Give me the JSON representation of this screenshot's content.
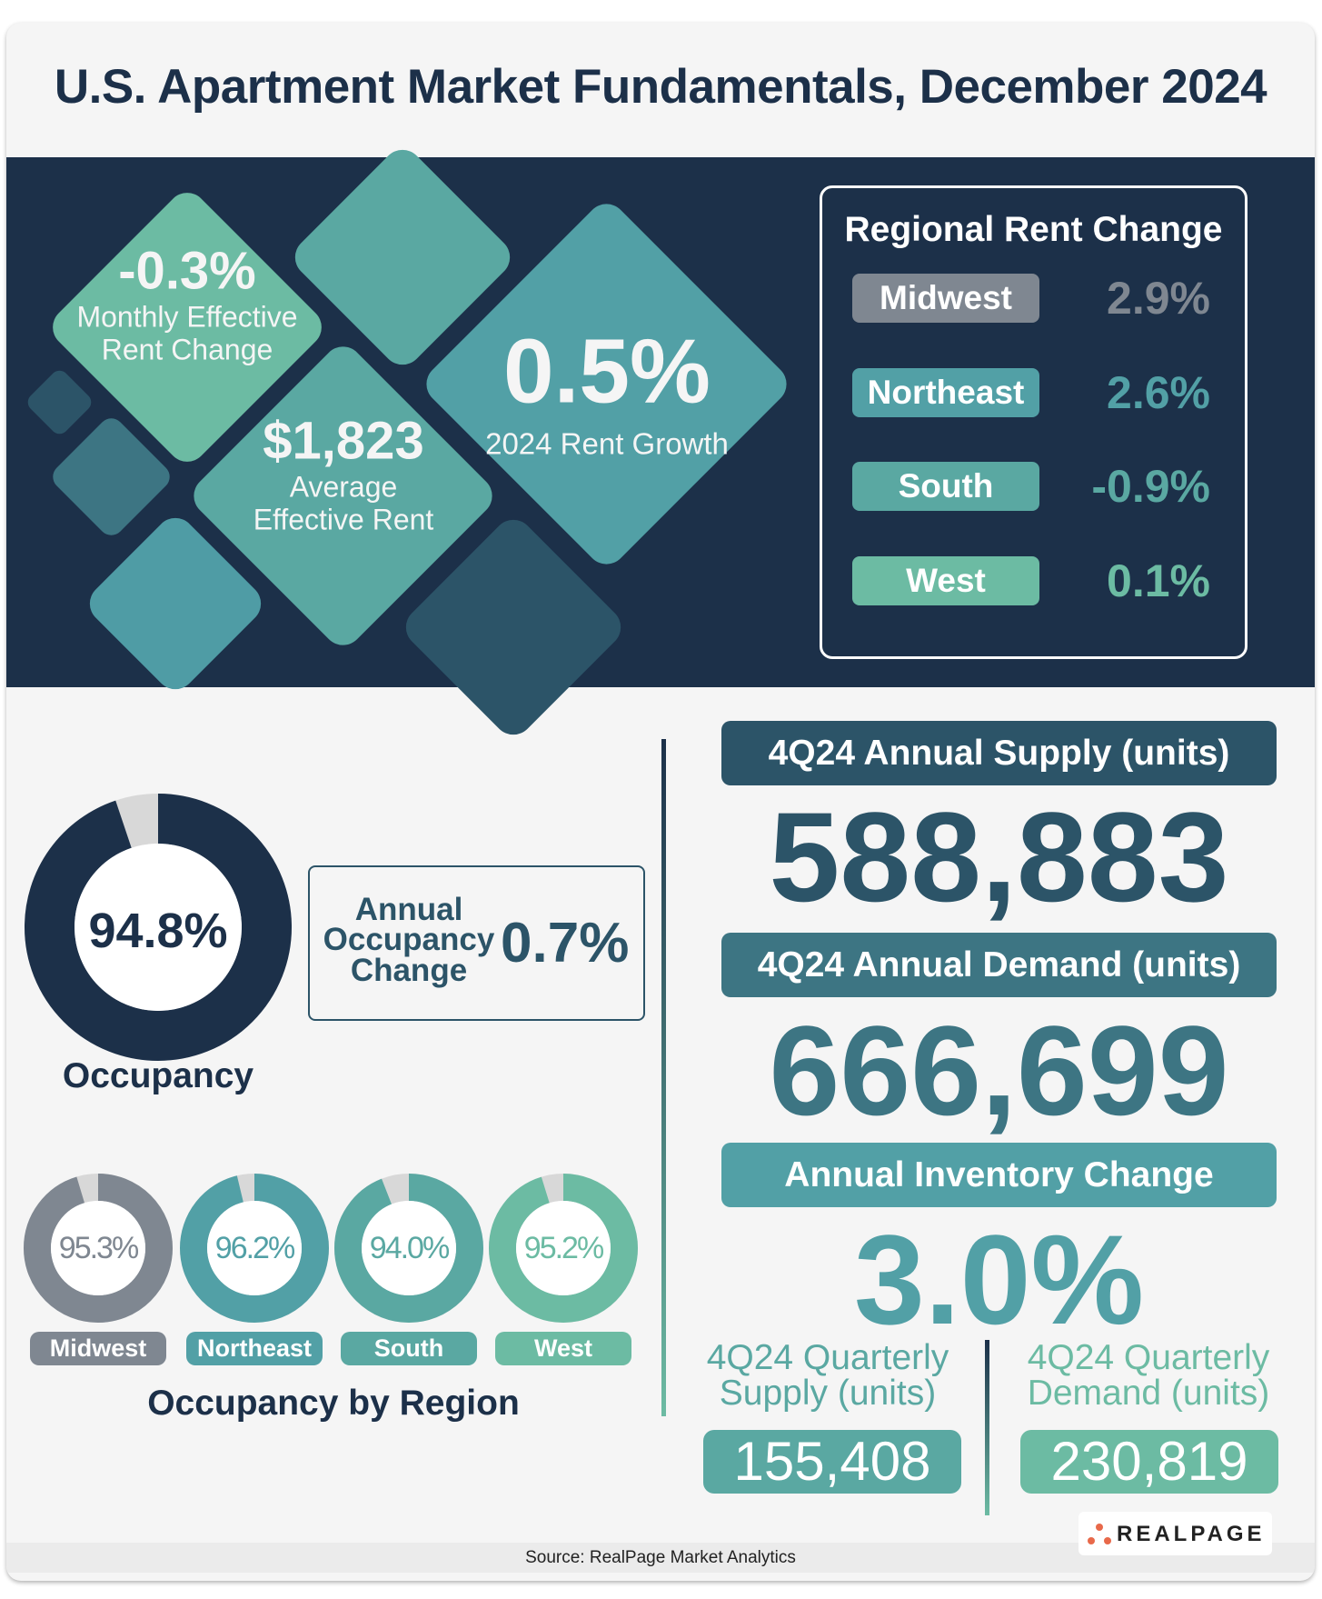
{
  "title": "U.S. Apartment Market Fundamentals, December 2024",
  "colors": {
    "navy": "#1c3049",
    "gray": "#7f8791",
    "teal": "#52a0a6",
    "south": "#5aa8a2",
    "green": "#6cbba3",
    "darkteal": "#2c5468",
    "empty": "#d8d8d8"
  },
  "hero": {
    "monthly": {
      "value": "-0.3%",
      "label1": "Monthly Effective",
      "label2": "Rent Change"
    },
    "average": {
      "value": "$1,823",
      "label1": "Average",
      "label2": "Effective Rent"
    },
    "growth": {
      "value": "0.5%",
      "label": "2024 Rent Growth"
    }
  },
  "regional_rent": {
    "title": "Regional Rent Change",
    "rows": [
      {
        "region": "Midwest",
        "value": "2.9%"
      },
      {
        "region": "Northeast",
        "value": "2.6%"
      },
      {
        "region": "South",
        "value": "-0.9%"
      },
      {
        "region": "West",
        "value": "0.1%"
      }
    ]
  },
  "occupancy": {
    "value": "94.8%",
    "percent": 94.8,
    "label": "Occupancy"
  },
  "annual_occupancy": {
    "label1": "Annual",
    "label2": "Occupancy",
    "label3": "Change",
    "value": "0.7%"
  },
  "regional_occupancy": {
    "title": "Occupancy by Region",
    "items": [
      {
        "region": "Midwest",
        "value": "95.3%",
        "percent": 95.3
      },
      {
        "region": "Northeast",
        "value": "96.2%",
        "percent": 96.2
      },
      {
        "region": "South",
        "value": "94.0%",
        "percent": 94.0
      },
      {
        "region": "West",
        "value": "95.2%",
        "percent": 95.2
      }
    ]
  },
  "supply": {
    "label": "4Q24 Annual Supply (units)",
    "value": "588,883"
  },
  "demand": {
    "label": "4Q24 Annual Demand (units)",
    "value": "666,699"
  },
  "inventory": {
    "label": "Annual Inventory Change",
    "value": "3.0%"
  },
  "quarterly_supply": {
    "label1": "4Q24 Quarterly",
    "label2": "Supply (units)",
    "value": "155,408"
  },
  "quarterly_demand": {
    "label1": "4Q24 Quarterly",
    "label2": "Demand (units)",
    "value": "230,819"
  },
  "logo": "REALPAGE",
  "source": "Source: RealPage Market Analytics"
}
